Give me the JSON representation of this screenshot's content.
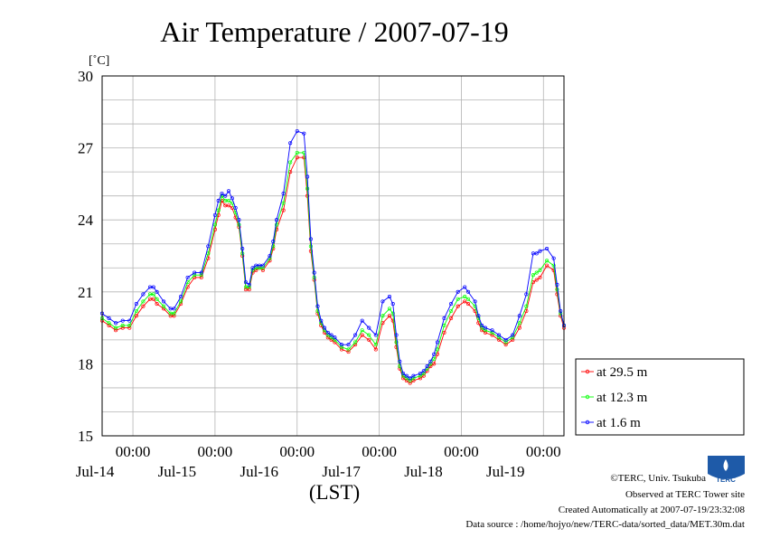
{
  "chart_data": {
    "type": "line",
    "title": "Air Temperature / 2007-07-19",
    "ylabel": "[˚C]",
    "xlabel": "(LST)",
    "ylim": [
      15,
      30
    ],
    "yticks": [
      15,
      18,
      21,
      24,
      27,
      30
    ],
    "xlim_hours": [
      -9,
      126
    ],
    "x_unit": "hours since 2007-07-14 00:00 LST",
    "x_ticks": [
      {
        "x": 0,
        "time": "00:00",
        "date": "Jul-14"
      },
      {
        "x": 24,
        "time": "00:00",
        "date": "Jul-15"
      },
      {
        "x": 48,
        "time": "00:00",
        "date": "Jul-16"
      },
      {
        "x": 72,
        "time": "00:00",
        "date": "Jul-17"
      },
      {
        "x": 96,
        "time": "00:00",
        "date": "Jul-18"
      },
      {
        "x": 120,
        "time": "00:00",
        "date": "Jul-19"
      }
    ],
    "grid": true,
    "legend_position": "right",
    "series": [
      {
        "name": "at 29.5 m",
        "color": "#ff0000",
        "x": [
          -9,
          -7,
          -5,
          -3,
          -1,
          1,
          3,
          5,
          6,
          7,
          9,
          11,
          12,
          14,
          16,
          18,
          20,
          22,
          24,
          25,
          26,
          27,
          28,
          29,
          30,
          31,
          32,
          33,
          34,
          35,
          36,
          37,
          38,
          40,
          41,
          42,
          44,
          46,
          48,
          50,
          51,
          52,
          53,
          54,
          55,
          56,
          57,
          58,
          59,
          61,
          63,
          65,
          67,
          69,
          71,
          73,
          75,
          76,
          77,
          78,
          79,
          80,
          81,
          82,
          84,
          85,
          86,
          87,
          88,
          89,
          91,
          93,
          95,
          97,
          98,
          100,
          101,
          102,
          103,
          105,
          107,
          109,
          111,
          113,
          115,
          117,
          118,
          119,
          121,
          123,
          124,
          125,
          126
        ],
        "y": [
          19.8,
          19.6,
          19.4,
          19.5,
          19.5,
          20.0,
          20.4,
          20.7,
          20.7,
          20.5,
          20.3,
          20.0,
          20.0,
          20.5,
          21.2,
          21.6,
          21.6,
          22.4,
          23.6,
          24.2,
          24.8,
          24.6,
          24.6,
          24.5,
          24.1,
          23.7,
          22.5,
          21.1,
          21.1,
          21.8,
          21.9,
          22.0,
          21.9,
          22.3,
          22.8,
          23.6,
          24.4,
          26.0,
          26.6,
          26.6,
          25.0,
          22.7,
          21.5,
          20.1,
          19.6,
          19.3,
          19.1,
          19.0,
          18.9,
          18.6,
          18.5,
          18.8,
          19.2,
          19.0,
          18.6,
          19.7,
          20.0,
          19.8,
          18.7,
          17.8,
          17.4,
          17.3,
          17.2,
          17.3,
          17.4,
          17.5,
          17.7,
          17.9,
          18.0,
          18.4,
          19.3,
          19.9,
          20.4,
          20.6,
          20.5,
          20.2,
          19.7,
          19.4,
          19.3,
          19.2,
          19.0,
          18.8,
          19.0,
          19.5,
          20.2,
          21.4,
          21.5,
          21.6,
          22.1,
          21.9,
          20.9,
          20.0,
          19.5
        ]
      },
      {
        "name": "at 12.3 m",
        "color": "#00ff00",
        "x": [
          -9,
          -7,
          -5,
          -3,
          -1,
          1,
          3,
          5,
          6,
          7,
          9,
          11,
          12,
          14,
          16,
          18,
          20,
          22,
          24,
          25,
          26,
          27,
          28,
          29,
          30,
          31,
          32,
          33,
          34,
          35,
          36,
          37,
          38,
          40,
          41,
          42,
          44,
          46,
          48,
          50,
          51,
          52,
          53,
          54,
          55,
          56,
          57,
          58,
          59,
          61,
          63,
          65,
          67,
          69,
          71,
          73,
          75,
          76,
          77,
          78,
          79,
          80,
          81,
          82,
          84,
          85,
          86,
          87,
          88,
          89,
          91,
          93,
          95,
          97,
          98,
          100,
          101,
          102,
          103,
          105,
          107,
          109,
          111,
          113,
          115,
          117,
          118,
          119,
          121,
          123,
          124,
          125,
          126
        ],
        "y": [
          19.9,
          19.7,
          19.5,
          19.6,
          19.6,
          20.2,
          20.6,
          20.9,
          20.9,
          20.7,
          20.4,
          20.1,
          20.1,
          20.6,
          21.4,
          21.7,
          21.7,
          22.6,
          23.8,
          24.4,
          25.0,
          24.8,
          24.8,
          24.7,
          24.3,
          23.8,
          22.6,
          21.2,
          21.2,
          21.9,
          22.0,
          22.0,
          22.0,
          22.4,
          22.9,
          23.8,
          24.7,
          26.4,
          26.8,
          26.8,
          25.3,
          22.9,
          21.6,
          20.2,
          19.7,
          19.4,
          19.2,
          19.1,
          19.0,
          18.7,
          18.6,
          18.9,
          19.4,
          19.2,
          18.8,
          20.0,
          20.3,
          20.1,
          18.9,
          17.9,
          17.5,
          17.4,
          17.3,
          17.4,
          17.5,
          17.6,
          17.8,
          18.0,
          18.2,
          18.6,
          19.6,
          20.2,
          20.7,
          20.8,
          20.7,
          20.4,
          19.9,
          19.5,
          19.4,
          19.3,
          19.1,
          18.9,
          19.1,
          19.7,
          20.4,
          21.7,
          21.8,
          21.9,
          22.3,
          22.1,
          21.1,
          20.1,
          19.6
        ]
      },
      {
        "name": "at 1.6 m",
        "color": "#0000ff",
        "x": [
          -9,
          -7,
          -5,
          -3,
          -1,
          1,
          3,
          5,
          6,
          7,
          9,
          11,
          12,
          14,
          16,
          18,
          20,
          22,
          24,
          25,
          26,
          27,
          28,
          29,
          30,
          31,
          32,
          33,
          34,
          35,
          36,
          37,
          38,
          40,
          41,
          42,
          44,
          46,
          48,
          50,
          51,
          52,
          53,
          54,
          55,
          56,
          57,
          58,
          59,
          61,
          63,
          65,
          67,
          69,
          71,
          73,
          75,
          76,
          77,
          78,
          79,
          80,
          81,
          82,
          84,
          85,
          86,
          87,
          88,
          89,
          91,
          93,
          95,
          97,
          98,
          100,
          101,
          102,
          103,
          105,
          107,
          109,
          111,
          113,
          115,
          117,
          118,
          119,
          121,
          123,
          124,
          125,
          126
        ],
        "y": [
          20.1,
          19.9,
          19.7,
          19.8,
          19.8,
          20.5,
          20.9,
          21.2,
          21.2,
          21.0,
          20.6,
          20.3,
          20.3,
          20.8,
          21.6,
          21.8,
          21.8,
          22.9,
          24.2,
          24.8,
          25.1,
          25.0,
          25.2,
          24.9,
          24.5,
          24.0,
          22.8,
          21.4,
          21.3,
          22.0,
          22.1,
          22.1,
          22.1,
          22.5,
          23.1,
          24.0,
          25.1,
          27.2,
          27.7,
          27.6,
          25.8,
          23.2,
          21.8,
          20.4,
          19.8,
          19.5,
          19.3,
          19.2,
          19.1,
          18.8,
          18.8,
          19.2,
          19.8,
          19.5,
          19.2,
          20.6,
          20.8,
          20.5,
          19.2,
          18.1,
          17.6,
          17.5,
          17.4,
          17.5,
          17.6,
          17.7,
          17.9,
          18.1,
          18.4,
          18.9,
          19.9,
          20.5,
          21.0,
          21.2,
          21.0,
          20.6,
          20.0,
          19.6,
          19.5,
          19.4,
          19.2,
          19.0,
          19.2,
          20.0,
          20.9,
          22.6,
          22.6,
          22.7,
          22.8,
          22.4,
          21.3,
          20.2,
          19.6
        ]
      }
    ]
  },
  "credits": {
    "copyright": "©TERC, Univ. Tsukuba",
    "site": "Observed at TERC Tower site",
    "created": "Created Automatically at 2007-07-19/23:32:08",
    "source": "Data source : /home/hojyo/new/TERC-data/sorted_data/MET.30m.dat",
    "logo_text": "TERC"
  }
}
